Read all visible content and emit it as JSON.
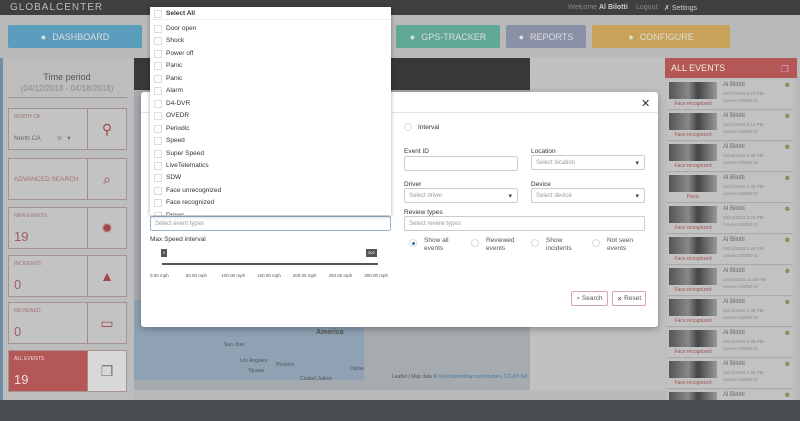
{
  "header": {
    "logo": "GLOBALCENTER",
    "welcome_prefix": "Welcome",
    "user": "Al Bilotti",
    "logout": "Logout",
    "settings": "Settings"
  },
  "nav": [
    {
      "label": "DASHBOARD",
      "color": "#5b9dbd"
    },
    {
      "label": "GPS-TRACKER",
      "color": "#5fa895"
    },
    {
      "label": "REPORTS",
      "color": "#8a91a6"
    },
    {
      "label": "CONFIGURE",
      "color": "#c9a25a"
    }
  ],
  "sidebar": {
    "time_period_title": "Time period",
    "time_period_range": "(04/12/2018 - 04/18/2018)",
    "location": {
      "label": "NORTH CA",
      "value": "North CA"
    },
    "advanced_search": "ADVANCED SEARCH",
    "new_events": {
      "label": "NEW EVENTS",
      "count": "19"
    },
    "incidents": {
      "label": "INCIDENTS",
      "count": "0"
    },
    "reviewed": {
      "label": "REVIEWED",
      "count": "0"
    },
    "all_events": {
      "label": "ALL EVENTS",
      "count": "19"
    }
  },
  "map": {
    "labels": [
      "America",
      "San Jose",
      "Los Angeles",
      "Phoenix",
      "Tijuana",
      "Ciudad Juárez",
      "Dallas"
    ],
    "attribution": "Leaflet | Map data © ",
    "attribution_link": "OpenStreetMap contributors, CC-BY-SA"
  },
  "events_panel": {
    "title": "ALL EVENTS",
    "events": [
      {
        "name": "Al Bilotti",
        "type": "Face recognized",
        "date": "04/17/2018 5:23 PM",
        "device": "Lenovo G5350 r2"
      },
      {
        "name": "Al Bilotti",
        "type": "Face recognized",
        "date": "04/17/2018 3:14 PM",
        "device": "Lenovo G5350 r2"
      },
      {
        "name": "Al Bilotti",
        "type": "Face recognized",
        "date": "04/15/2018 1:35 PM",
        "device": "Lenovo G5350 r2"
      },
      {
        "name": "Al Bilotti",
        "type": "Panic",
        "date": "04/14/2018 2:34 PM",
        "device": "Lenovo G5350 r2"
      },
      {
        "name": "Al Bilotti",
        "type": "Face recognized",
        "date": "04/14/2018 2:23 PM",
        "device": "Lenovo G5350 r2"
      },
      {
        "name": "Al Bilotti",
        "type": "Face recognized",
        "date": "04/14/2018 1:44 PM",
        "device": "Lenovo G5350 r2"
      },
      {
        "name": "Al Bilotti",
        "type": "Face recognized",
        "date": "04/14/2018 11:58 AM",
        "device": "Lenovo G5350 r2"
      },
      {
        "name": "Al Bilotti",
        "type": "Face recognized",
        "date": "04/13/2018 2:45 PM",
        "device": "Lenovo G5350 r2"
      },
      {
        "name": "Al Bilotti",
        "type": "Face recognized",
        "date": "04/13/2018 2:05 PM",
        "device": "Lenovo G5350 r2"
      },
      {
        "name": "Al Bilotti",
        "type": "Face recognized",
        "date": "04/13/2018 1:26 PM",
        "device": "Lenovo G5350 r2"
      },
      {
        "name": "Al Bilotti",
        "type": "",
        "date": "",
        "device": ""
      }
    ]
  },
  "modal": {
    "event_types_placeholder": "Select event types",
    "dropdown": {
      "select_all": "Select All",
      "options": [
        "Door open",
        "Shock",
        "Power off",
        "Panic",
        "Panic",
        "Alarm",
        "D4-DVR",
        "OVEDR",
        "Periodic",
        "Speed",
        "Super Speed",
        "LiveTelematics",
        "SDW",
        "Face unrecognized",
        "Face recognized",
        "Drows"
      ]
    },
    "max_speed_label": "Max Speed interval",
    "slider_min": "0",
    "slider_max": "300",
    "speed_ticks": [
      "0.00 mph",
      "50.00 mph",
      "100.00 mph",
      "150.00 mph",
      "200.00 mph",
      "250.00 mph",
      "300.00 mph"
    ],
    "interval_label": "Interval",
    "event_id_label": "Event ID",
    "event_id_value": "",
    "location_label": "Location",
    "location_placeholder": "Select location",
    "driver_label": "Driver",
    "driver_placeholder": "Select driver",
    "device_label": "Device",
    "device_placeholder": "Select device",
    "review_types_label": "Review types",
    "review_types_placeholder": "Select review types",
    "review_filters": [
      {
        "label": "Show all events",
        "selected": true
      },
      {
        "label": "Reviewed events",
        "selected": false
      },
      {
        "label": "Show incidents",
        "selected": false
      },
      {
        "label": "Not seen events",
        "selected": false
      }
    ],
    "search_button": "Search",
    "reset_button": "Reset"
  }
}
